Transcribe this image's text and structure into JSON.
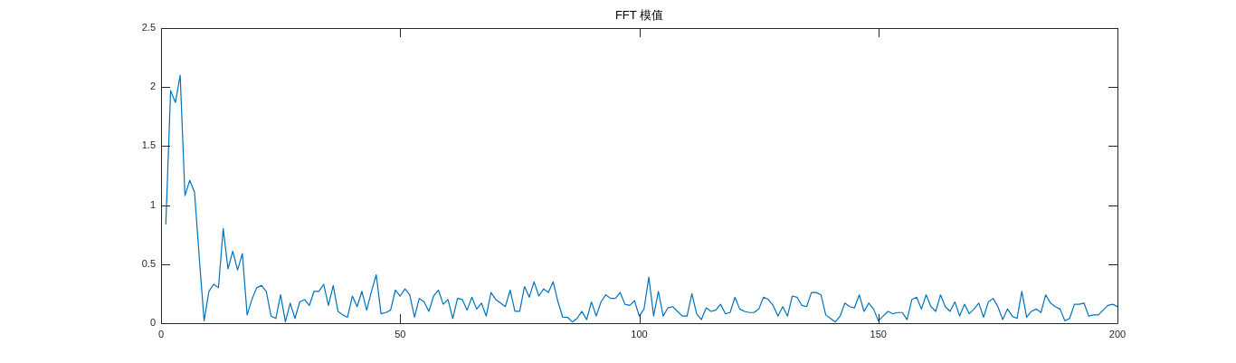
{
  "chart_data": {
    "type": "line",
    "title": "FFT 模值",
    "xlim": [
      0,
      200
    ],
    "xticks": [
      0,
      50,
      100,
      150,
      200
    ],
    "ylim": [
      0,
      2.5
    ],
    "yticks": [
      0,
      0.5,
      1,
      1.5,
      2,
      2.5
    ],
    "grid": false,
    "legend": false,
    "marker": "none",
    "line_style": "solid",
    "series": [
      {
        "color": "#0072bd",
        "x": [
          1,
          2,
          3,
          4,
          5,
          6,
          7,
          8,
          9,
          10,
          11,
          12,
          13,
          14,
          15,
          16,
          17,
          18,
          19,
          20,
          21,
          22,
          23,
          24,
          25,
          26,
          27,
          28,
          29,
          30,
          31,
          32,
          33,
          34,
          35,
          36,
          37,
          38,
          39,
          40,
          41,
          42,
          43,
          44,
          45,
          46,
          47,
          48,
          49,
          50,
          51,
          52,
          53,
          54,
          55,
          56,
          57,
          58,
          59,
          60,
          61,
          62,
          63,
          64,
          65,
          66,
          67,
          68,
          69,
          70,
          71,
          72,
          73,
          74,
          75,
          76,
          77,
          78,
          79,
          80,
          81,
          82,
          83,
          84,
          85,
          86,
          87,
          88,
          89,
          90,
          91,
          92,
          93,
          94,
          95,
          96,
          97,
          98,
          99,
          100,
          101,
          102,
          103,
          104,
          105,
          106,
          107,
          108,
          109,
          110,
          111,
          112,
          113,
          114,
          115,
          116,
          117,
          118,
          119,
          120,
          121,
          122,
          123,
          124,
          125,
          126,
          127,
          128,
          129,
          130,
          131,
          132,
          133,
          134,
          135,
          136,
          137,
          138,
          139,
          140,
          141,
          142,
          143,
          144,
          145,
          146,
          147,
          148,
          149,
          150,
          151,
          152,
          153,
          154,
          155,
          156,
          157,
          158,
          159,
          160,
          161,
          162,
          163,
          164,
          165,
          166,
          167,
          168,
          169,
          170,
          171,
          172,
          173,
          174,
          175,
          176,
          177,
          178,
          179,
          180,
          181,
          182,
          183,
          184,
          185,
          186,
          187,
          188,
          189,
          190,
          191,
          192,
          193,
          194,
          195,
          196,
          197,
          198,
          199,
          200
        ],
        "values": [
          0.84,
          1.97,
          1.87,
          2.1,
          1.08,
          1.21,
          1.11,
          0.55,
          0.02,
          0.27,
          0.33,
          0.3,
          0.8,
          0.46,
          0.61,
          0.45,
          0.59,
          0.07,
          0.2,
          0.3,
          0.32,
          0.27,
          0.06,
          0.04,
          0.24,
          0.01,
          0.17,
          0.04,
          0.18,
          0.2,
          0.15,
          0.27,
          0.27,
          0.33,
          0.15,
          0.32,
          0.1,
          0.07,
          0.05,
          0.23,
          0.14,
          0.27,
          0.11,
          0.27,
          0.41,
          0.08,
          0.09,
          0.11,
          0.28,
          0.23,
          0.29,
          0.24,
          0.05,
          0.21,
          0.18,
          0.1,
          0.23,
          0.28,
          0.16,
          0.2,
          0.04,
          0.21,
          0.2,
          0.11,
          0.22,
          0.12,
          0.17,
          0.06,
          0.26,
          0.2,
          0.17,
          0.14,
          0.28,
          0.1,
          0.1,
          0.31,
          0.22,
          0.35,
          0.23,
          0.29,
          0.26,
          0.35,
          0.18,
          0.05,
          0.05,
          0.01,
          0.04,
          0.1,
          0.03,
          0.18,
          0.06,
          0.18,
          0.24,
          0.21,
          0.21,
          0.26,
          0.16,
          0.15,
          0.19,
          0.06,
          0.12,
          0.39,
          0.06,
          0.27,
          0.06,
          0.13,
          0.14,
          0.1,
          0.06,
          0.06,
          0.25,
          0.08,
          0.03,
          0.13,
          0.1,
          0.11,
          0.16,
          0.08,
          0.09,
          0.22,
          0.12,
          0.1,
          0.09,
          0.09,
          0.12,
          0.22,
          0.2,
          0.15,
          0.06,
          0.14,
          0.06,
          0.23,
          0.22,
          0.15,
          0.14,
          0.26,
          0.26,
          0.24,
          0.07,
          0.04,
          0.01,
          0.06,
          0.17,
          0.14,
          0.13,
          0.24,
          0.1,
          0.17,
          0.12,
          0.02,
          0.06,
          0.1,
          0.08,
          0.09,
          0.09,
          0.03,
          0.2,
          0.22,
          0.12,
          0.24,
          0.14,
          0.1,
          0.24,
          0.14,
          0.1,
          0.18,
          0.06,
          0.16,
          0.08,
          0.12,
          0.17,
          0.05,
          0.18,
          0.21,
          0.14,
          0.03,
          0.12,
          0.06,
          0.04,
          0.27,
          0.05,
          0.1,
          0.12,
          0.09,
          0.24,
          0.17,
          0.14,
          0.12,
          0.02,
          0.04,
          0.16,
          0.16,
          0.17,
          0.06,
          0.07,
          0.07,
          0.11,
          0.15,
          0.16,
          0.14
        ]
      }
    ]
  }
}
